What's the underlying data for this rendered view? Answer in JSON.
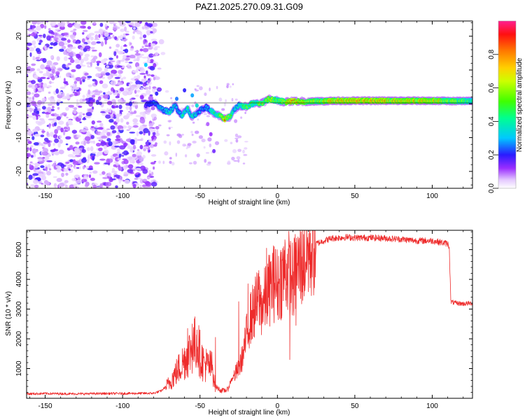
{
  "title": "PAZ1.2025.270.09.31.G09",
  "chart_data": [
    {
      "type": "heatmap",
      "title": "PAZ1.2025.270.09.31.G09",
      "xlabel": "Height of straight line (km)",
      "ylabel": "Frequency (Hz)",
      "xlim": [
        -162,
        126
      ],
      "ylim": [
        -25,
        24.5
      ],
      "xticks": [
        -150,
        -100,
        -50,
        0,
        50,
        100
      ],
      "yticks": [
        -20,
        -10,
        0,
        10,
        20
      ],
      "ridge": {
        "x": [
          -85,
          -80,
          -75,
          -70,
          -66,
          -62,
          -58,
          -55,
          -50,
          -46,
          -42,
          -38,
          -34,
          -31,
          -28,
          -25,
          -20,
          -15,
          -10,
          -5,
          0,
          5,
          10,
          20,
          40,
          60,
          80,
          100,
          126
        ],
        "freq": [
          -0.5,
          0.5,
          -1.5,
          -2.5,
          -0.5,
          -3.5,
          -1.5,
          -4.0,
          -2.0,
          -1.0,
          -2.5,
          -3.5,
          -4.5,
          -4.0,
          -2.0,
          -0.5,
          -0.8,
          0.2,
          0.3,
          1.5,
          1.0,
          0.5,
          0.8,
          0.7,
          0.9,
          0.9,
          0.9,
          0.9,
          0.8
        ],
        "amplitude": [
          0.15,
          0.3,
          0.35,
          0.4,
          0.35,
          0.4,
          0.45,
          0.45,
          0.35,
          0.3,
          0.45,
          0.5,
          0.9,
          0.7,
          0.4,
          0.45,
          0.6,
          0.55,
          0.65,
          0.7,
          0.6,
          0.7,
          0.85,
          0.65,
          0.85,
          0.85,
          0.8,
          0.8,
          0.55
        ]
      }
    },
    {
      "type": "colorbar",
      "label": "Normalized spectral amplitude",
      "ticks": [
        "0.0",
        "0.2",
        "0.4",
        "0.6",
        "0.8"
      ],
      "range": [
        0,
        1
      ]
    },
    {
      "type": "line",
      "xlabel": "Height of straight line (km)",
      "ylabel": "SNR (10 * v/v)",
      "xlim": [
        -162,
        126
      ],
      "ylim": [
        0,
        5650
      ],
      "xticks": [
        -150,
        -100,
        -50,
        0,
        50,
        100
      ],
      "yticks": [
        1000,
        2000,
        3000,
        4000,
        5000
      ],
      "color": "#ee2b2b",
      "series": [
        {
          "name": "SNR",
          "x": [
            -162,
            -150,
            -130,
            -110,
            -90,
            -80,
            -75,
            -70,
            -65,
            -60,
            -55,
            -52,
            -50,
            -48,
            -45,
            -42,
            -40,
            -37,
            -35,
            -32,
            -30,
            -25,
            -22,
            -20,
            -18,
            -15,
            -12,
            -10,
            -8,
            -5,
            -2,
            0,
            3,
            5,
            8,
            10,
            12,
            15,
            20,
            25,
            30,
            35,
            40,
            45,
            50,
            60,
            70,
            80,
            90,
            100,
            105,
            110,
            111,
            112,
            115,
            120,
            126
          ],
          "y": [
            150,
            160,
            150,
            160,
            165,
            170,
            250,
            500,
            900,
            1300,
            1700,
            1900,
            1500,
            1200,
            1100,
            1050,
            400,
            280,
            250,
            300,
            600,
            1000,
            1500,
            2100,
            2600,
            3000,
            3300,
            3100,
            3300,
            3700,
            3900,
            3800,
            4100,
            4300,
            4200,
            3900,
            4300,
            4500,
            4900,
            5200,
            5300,
            5380,
            5400,
            5420,
            5400,
            5400,
            5380,
            5350,
            5300,
            5300,
            5250,
            5200,
            5100,
            3250,
            3200,
            3180,
            3200
          ],
          "spikes": [
            {
              "x": -58,
              "y": 2350
            },
            {
              "x": -55,
              "y": 2500
            },
            {
              "x": -52,
              "y": 2300
            },
            {
              "x": -40,
              "y": 2050
            },
            {
              "x": -35,
              "y": 300
            },
            {
              "x": -25,
              "y": 3250
            },
            {
              "x": -19,
              "y": 3850
            },
            {
              "x": -12,
              "y": 4300
            },
            {
              "x": -7,
              "y": 5050
            },
            {
              "x": -2,
              "y": 5100
            },
            {
              "x": 5,
              "y": 5200
            },
            {
              "x": 8,
              "y": 1300
            },
            {
              "x": 12,
              "y": 2450
            },
            {
              "x": 15,
              "y": 5000
            }
          ]
        }
      ]
    }
  ]
}
